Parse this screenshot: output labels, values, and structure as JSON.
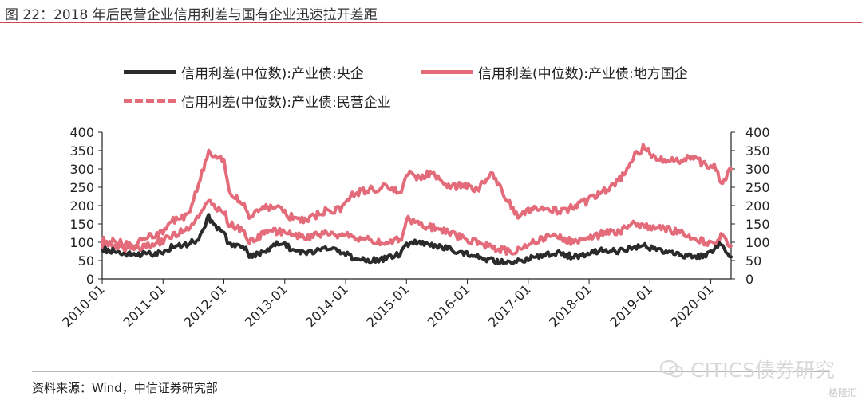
{
  "figure": {
    "title": "图 22：2018 年后民营企业信用利差与国有企业迅速拉开差距",
    "source": "资料来源：Wind，中信证券研究部",
    "watermark": "CITICS债券研究",
    "watermark_small": "格隆汇"
  },
  "colors": {
    "dark_series": "#2b2b2b",
    "red_series": "#e36b7a",
    "title_rule": "#c9484f"
  },
  "chart_data": {
    "type": "line",
    "y_axis_left": {
      "range": [
        0,
        400
      ],
      "ticks": [
        "400",
        "350",
        "300",
        "250",
        "200",
        "150",
        "100",
        "50",
        "0"
      ]
    },
    "y_axis_right": {
      "range": [
        0,
        400
      ],
      "ticks": [
        "400",
        "350",
        "300",
        "250",
        "200",
        "150",
        "100",
        "50",
        "0"
      ]
    },
    "x_axis": {
      "range": [
        "2010-01",
        "2020-05"
      ],
      "ticks": [
        "2010-01",
        "2011-01",
        "2012-01",
        "2013-01",
        "2014-01",
        "2015-01",
        "2016-01",
        "2017-01",
        "2018-01",
        "2019-01",
        "2020-01"
      ]
    },
    "legend": {
      "position": "top"
    },
    "grid": false,
    "series": [
      {
        "name": "信用利差(中位数):产业债:央企",
        "style": "solid",
        "color": "#2b2b2b",
        "points": [
          [
            "2010-01",
            80
          ],
          [
            "2010-04",
            75
          ],
          [
            "2010-07",
            65
          ],
          [
            "2010-10",
            68
          ],
          [
            "2011-01",
            72
          ],
          [
            "2011-03",
            90
          ],
          [
            "2011-06",
            95
          ],
          [
            "2011-08",
            110
          ],
          [
            "2011-10",
            170
          ],
          [
            "2011-11",
            145
          ],
          [
            "2012-01",
            125
          ],
          [
            "2012-02",
            95
          ],
          [
            "2012-05",
            88
          ],
          [
            "2012-06",
            60
          ],
          [
            "2012-09",
            75
          ],
          [
            "2012-12",
            100
          ],
          [
            "2013-02",
            85
          ],
          [
            "2013-05",
            70
          ],
          [
            "2013-09",
            85
          ],
          [
            "2013-12",
            75
          ],
          [
            "2014-02",
            60
          ],
          [
            "2014-06",
            50
          ],
          [
            "2014-09",
            55
          ],
          [
            "2014-12",
            70
          ],
          [
            "2015-01",
            95
          ],
          [
            "2015-03",
            100
          ],
          [
            "2015-06",
            90
          ],
          [
            "2015-09",
            85
          ],
          [
            "2015-12",
            70
          ],
          [
            "2016-03",
            60
          ],
          [
            "2016-06",
            50
          ],
          [
            "2016-09",
            45
          ],
          [
            "2016-11",
            50
          ],
          [
            "2017-01",
            55
          ],
          [
            "2017-04",
            65
          ],
          [
            "2017-07",
            70
          ],
          [
            "2017-10",
            60
          ],
          [
            "2018-01",
            70
          ],
          [
            "2018-04",
            80
          ],
          [
            "2018-07",
            75
          ],
          [
            "2018-10",
            85
          ],
          [
            "2018-12",
            90
          ],
          [
            "2019-02",
            80
          ],
          [
            "2019-06",
            70
          ],
          [
            "2019-09",
            60
          ],
          [
            "2019-12",
            65
          ],
          [
            "2020-02",
            85
          ],
          [
            "2020-03",
            95
          ],
          [
            "2020-05",
            60
          ]
        ]
      },
      {
        "name": "信用利差(中位数):产业债:地方国企",
        "style": "solid",
        "color": "#e36b7a",
        "points": [
          [
            "2010-01",
            95
          ],
          [
            "2010-04",
            90
          ],
          [
            "2010-07",
            80
          ],
          [
            "2010-10",
            90
          ],
          [
            "2011-01",
            105
          ],
          [
            "2011-03",
            120
          ],
          [
            "2011-06",
            135
          ],
          [
            "2011-08",
            175
          ],
          [
            "2011-10",
            220
          ],
          [
            "2011-11",
            200
          ],
          [
            "2012-01",
            185
          ],
          [
            "2012-02",
            150
          ],
          [
            "2012-05",
            130
          ],
          [
            "2012-06",
            100
          ],
          [
            "2012-09",
            125
          ],
          [
            "2012-12",
            130
          ],
          [
            "2013-02",
            125
          ],
          [
            "2013-05",
            110
          ],
          [
            "2013-09",
            125
          ],
          [
            "2013-12",
            120
          ],
          [
            "2014-02",
            115
          ],
          [
            "2014-06",
            105
          ],
          [
            "2014-09",
            95
          ],
          [
            "2014-12",
            110
          ],
          [
            "2015-01",
            165
          ],
          [
            "2015-03",
            150
          ],
          [
            "2015-06",
            140
          ],
          [
            "2015-09",
            130
          ],
          [
            "2015-12",
            110
          ],
          [
            "2016-03",
            100
          ],
          [
            "2016-06",
            85
          ],
          [
            "2016-09",
            75
          ],
          [
            "2016-11",
            80
          ],
          [
            "2017-01",
            95
          ],
          [
            "2017-04",
            110
          ],
          [
            "2017-07",
            115
          ],
          [
            "2017-10",
            100
          ],
          [
            "2018-01",
            110
          ],
          [
            "2018-04",
            125
          ],
          [
            "2018-07",
            130
          ],
          [
            "2018-10",
            150
          ],
          [
            "2018-12",
            140
          ],
          [
            "2019-02",
            145
          ],
          [
            "2019-06",
            130
          ],
          [
            "2019-09",
            115
          ],
          [
            "2019-12",
            100
          ],
          [
            "2020-02",
            95
          ],
          [
            "2020-03",
            115
          ],
          [
            "2020-05",
            90
          ]
        ]
      },
      {
        "name": "信用利差(中位数):产业债:民营企业",
        "style": "dashed",
        "color": "#e36b7a",
        "points": [
          [
            "2010-01",
            105
          ],
          [
            "2010-04",
            100
          ],
          [
            "2010-07",
            90
          ],
          [
            "2010-10",
            115
          ],
          [
            "2011-01",
            125
          ],
          [
            "2011-03",
            160
          ],
          [
            "2011-06",
            175
          ],
          [
            "2011-08",
            260
          ],
          [
            "2011-10",
            345
          ],
          [
            "2011-11",
            335
          ],
          [
            "2012-01",
            320
          ],
          [
            "2012-02",
            240
          ],
          [
            "2012-05",
            200
          ],
          [
            "2012-06",
            170
          ],
          [
            "2012-09",
            195
          ],
          [
            "2012-12",
            190
          ],
          [
            "2013-02",
            170
          ],
          [
            "2013-05",
            160
          ],
          [
            "2013-09",
            185
          ],
          [
            "2013-12",
            190
          ],
          [
            "2014-02",
            230
          ],
          [
            "2014-06",
            245
          ],
          [
            "2014-09",
            250
          ],
          [
            "2014-12",
            240
          ],
          [
            "2015-01",
            290
          ],
          [
            "2015-03",
            275
          ],
          [
            "2015-06",
            290
          ],
          [
            "2015-09",
            250
          ],
          [
            "2015-12",
            255
          ],
          [
            "2016-03",
            245
          ],
          [
            "2016-06",
            285
          ],
          [
            "2016-09",
            210
          ],
          [
            "2016-11",
            175
          ],
          [
            "2017-01",
            185
          ],
          [
            "2017-04",
            195
          ],
          [
            "2017-07",
            185
          ],
          [
            "2017-10",
            195
          ],
          [
            "2018-01",
            215
          ],
          [
            "2018-04",
            240
          ],
          [
            "2018-07",
            270
          ],
          [
            "2018-10",
            340
          ],
          [
            "2018-12",
            360
          ],
          [
            "2019-02",
            330
          ],
          [
            "2019-06",
            320
          ],
          [
            "2019-09",
            335
          ],
          [
            "2019-12",
            310
          ],
          [
            "2020-02",
            305
          ],
          [
            "2020-03",
            260
          ],
          [
            "2020-05",
            300
          ]
        ]
      }
    ]
  }
}
